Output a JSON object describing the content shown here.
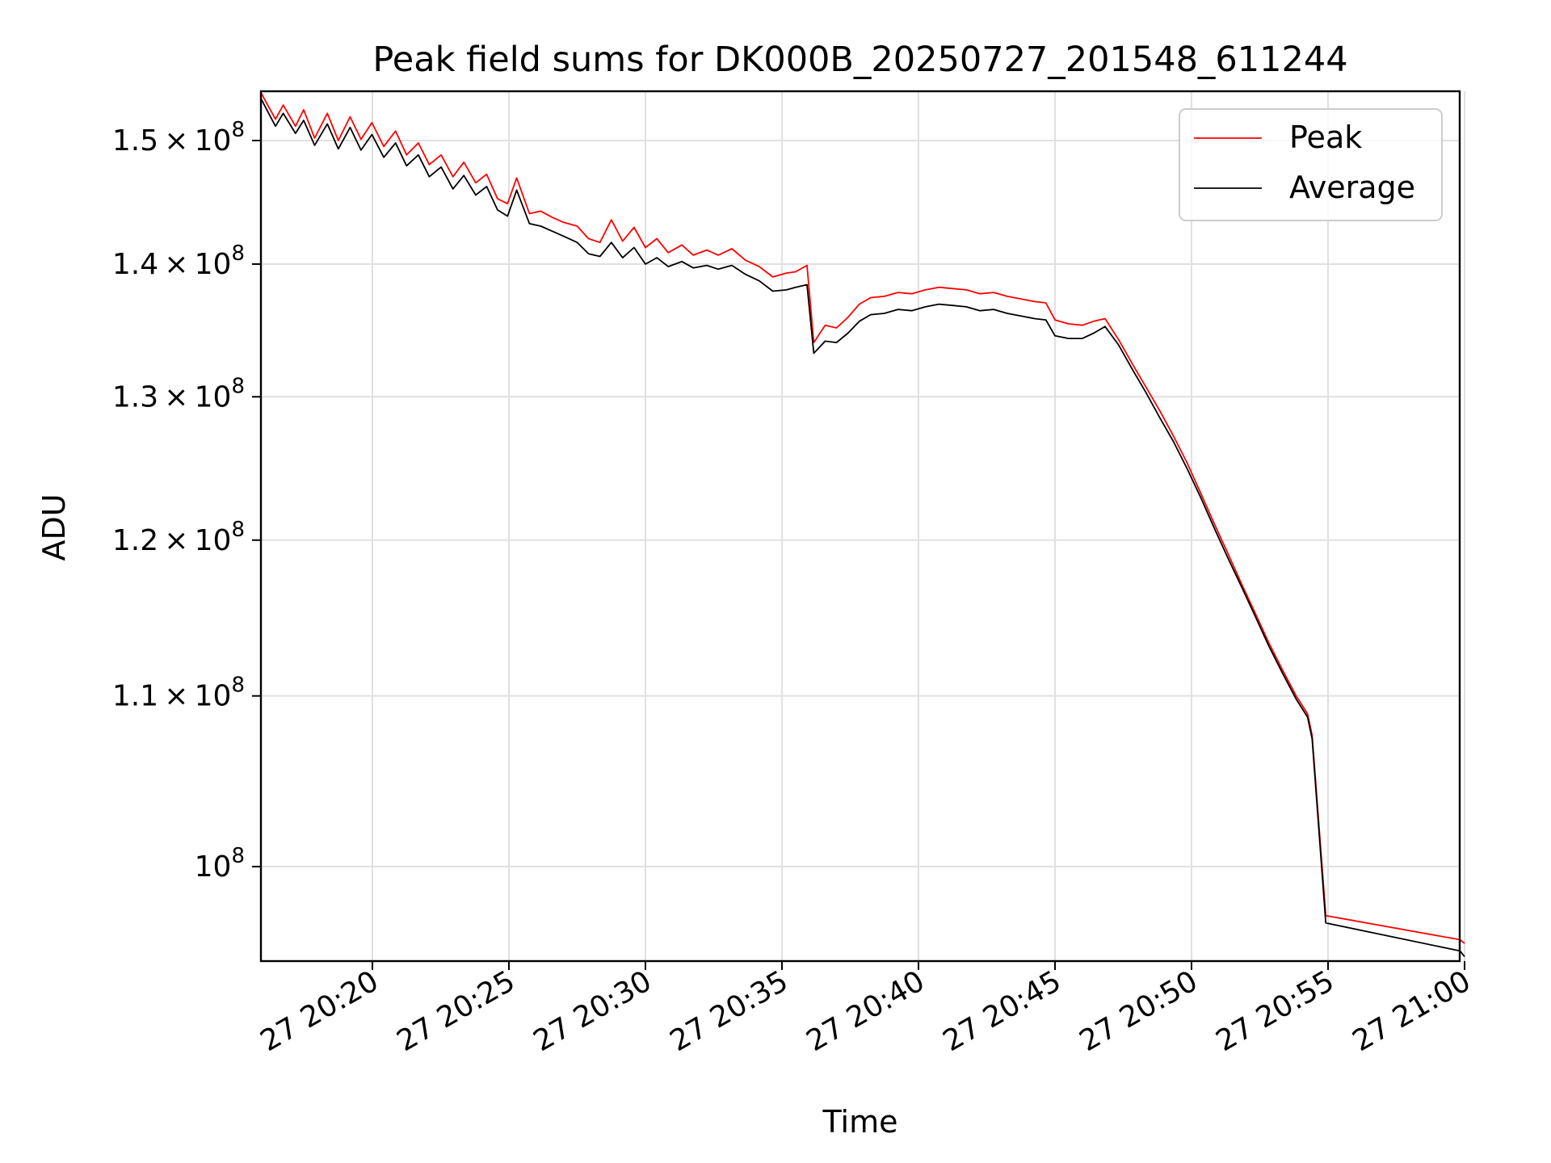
{
  "chart_data": {
    "type": "line",
    "title": "Peak field sums for DK000B_20250727_201548_611244",
    "xlabel": "Time",
    "ylabel": "ADU",
    "yscale": "log",
    "grid": true,
    "legend_position": "top-right",
    "x_ticks": [
      "27 20:20",
      "27 20:25",
      "27 20:30",
      "27 20:35",
      "27 20:40",
      "27 20:45",
      "27 20:50",
      "27 20:55",
      "27 21:00"
    ],
    "y_ticks": [
      {
        "value": 150000000,
        "mantissa": "1.5",
        "exp": "8"
      },
      {
        "value": 140000000,
        "mantissa": "1.4",
        "exp": "8"
      },
      {
        "value": 130000000,
        "mantissa": "1.3",
        "exp": "8"
      },
      {
        "value": 120000000,
        "mantissa": "1.2",
        "exp": "8"
      },
      {
        "value": 110000000,
        "mantissa": "1.1",
        "exp": "8"
      },
      {
        "value": 100000000,
        "mantissa": "",
        "exp": "8"
      }
    ],
    "series": [
      {
        "name": "Peak",
        "color": "#ff0000",
        "points": [
          [
            "20:15:56",
            154000000
          ],
          [
            "20:16:27",
            151800000
          ],
          [
            "20:16:44",
            153000000
          ],
          [
            "20:17:11",
            151200000
          ],
          [
            "20:17:29",
            152600000
          ],
          [
            "20:17:53",
            150200000
          ],
          [
            "20:18:21",
            152300000
          ],
          [
            "20:18:45",
            150000000
          ],
          [
            "20:19:11",
            152000000
          ],
          [
            "20:19:35",
            150100000
          ],
          [
            "20:19:59",
            151500000
          ],
          [
            "20:20:25",
            149500000
          ],
          [
            "20:20:51",
            150800000
          ],
          [
            "20:21:15",
            148800000
          ],
          [
            "20:21:41",
            149800000
          ],
          [
            "20:22:05",
            148000000
          ],
          [
            "20:22:31",
            148800000
          ],
          [
            "20:22:57",
            147000000
          ],
          [
            "20:23:21",
            148200000
          ],
          [
            "20:23:47",
            146500000
          ],
          [
            "20:24:11",
            147200000
          ],
          [
            "20:24:35",
            145200000
          ],
          [
            "20:24:57",
            144800000
          ],
          [
            "20:25:17",
            146900000
          ],
          [
            "20:25:45",
            144000000
          ],
          [
            "20:26:10",
            144200000
          ],
          [
            "20:26:35",
            143700000
          ],
          [
            "20:27:00",
            143300000
          ],
          [
            "20:27:30",
            143000000
          ],
          [
            "20:27:55",
            142000000
          ],
          [
            "20:28:20",
            141700000
          ],
          [
            "20:28:45",
            143500000
          ],
          [
            "20:29:10",
            141800000
          ],
          [
            "20:29:35",
            142900000
          ],
          [
            "20:30:00",
            141300000
          ],
          [
            "20:30:25",
            142000000
          ],
          [
            "20:30:50",
            140900000
          ],
          [
            "20:31:20",
            141500000
          ],
          [
            "20:31:45",
            140700000
          ],
          [
            "20:32:15",
            141100000
          ],
          [
            "20:32:40",
            140700000
          ],
          [
            "20:33:10",
            141200000
          ],
          [
            "20:33:40",
            140300000
          ],
          [
            "20:34:10",
            139800000
          ],
          [
            "20:34:40",
            139000000
          ],
          [
            "20:35:10",
            139300000
          ],
          [
            "20:35:30",
            139400000
          ],
          [
            "20:35:55",
            139900000
          ],
          [
            "20:36:10",
            134000000
          ],
          [
            "20:36:35",
            135300000
          ],
          [
            "20:37:00",
            135100000
          ],
          [
            "20:37:25",
            135900000
          ],
          [
            "20:37:50",
            136900000
          ],
          [
            "20:38:15",
            137400000
          ],
          [
            "20:38:45",
            137500000
          ],
          [
            "20:39:15",
            137800000
          ],
          [
            "20:39:45",
            137700000
          ],
          [
            "20:40:15",
            138000000
          ],
          [
            "20:40:45",
            138200000
          ],
          [
            "20:41:15",
            138100000
          ],
          [
            "20:41:45",
            138000000
          ],
          [
            "20:42:15",
            137700000
          ],
          [
            "20:42:45",
            137800000
          ],
          [
            "20:43:15",
            137500000
          ],
          [
            "20:43:45",
            137300000
          ],
          [
            "20:44:15",
            137100000
          ],
          [
            "20:44:40",
            137000000
          ],
          [
            "20:45:00",
            135700000
          ],
          [
            "20:45:30",
            135400000
          ],
          [
            "20:46:00",
            135300000
          ],
          [
            "20:46:25",
            135600000
          ],
          [
            "20:46:50",
            135800000
          ],
          [
            "20:47:20",
            134200000
          ],
          [
            "20:47:50",
            132400000
          ],
          [
            "20:48:20",
            130700000
          ],
          [
            "20:48:50",
            129000000
          ],
          [
            "20:49:20",
            127200000
          ],
          [
            "20:49:50",
            125300000
          ],
          [
            "20:50:20",
            123200000
          ],
          [
            "20:50:50",
            121100000
          ],
          [
            "20:51:20",
            119100000
          ],
          [
            "20:51:50",
            117100000
          ],
          [
            "20:52:20",
            115200000
          ],
          [
            "20:52:50",
            113300000
          ],
          [
            "20:53:20",
            111600000
          ],
          [
            "20:53:50",
            110000000
          ],
          [
            "20:54:15",
            108900000
          ],
          [
            "20:54:25",
            107600000
          ],
          [
            "20:54:55",
            97300000
          ],
          [
            "20:59:50",
            96000000
          ],
          [
            "21:00:00",
            95800000
          ]
        ]
      },
      {
        "name": "Average",
        "color": "#000000",
        "points": [
          [
            "20:15:56",
            153500000
          ],
          [
            "20:16:27",
            151200000
          ],
          [
            "20:16:44",
            152300000
          ],
          [
            "20:17:11",
            150600000
          ],
          [
            "20:17:29",
            151700000
          ],
          [
            "20:17:53",
            149600000
          ],
          [
            "20:18:21",
            151400000
          ],
          [
            "20:18:45",
            149300000
          ],
          [
            "20:19:11",
            151100000
          ],
          [
            "20:19:35",
            149200000
          ],
          [
            "20:19:59",
            150500000
          ],
          [
            "20:20:25",
            148600000
          ],
          [
            "20:20:51",
            149800000
          ],
          [
            "20:21:15",
            147900000
          ],
          [
            "20:21:41",
            148800000
          ],
          [
            "20:22:05",
            147000000
          ],
          [
            "20:22:31",
            147800000
          ],
          [
            "20:22:57",
            146000000
          ],
          [
            "20:23:21",
            147100000
          ],
          [
            "20:23:47",
            145500000
          ],
          [
            "20:24:11",
            146200000
          ],
          [
            "20:24:35",
            144300000
          ],
          [
            "20:24:57",
            143800000
          ],
          [
            "20:25:17",
            145900000
          ],
          [
            "20:25:45",
            143200000
          ],
          [
            "20:26:10",
            143000000
          ],
          [
            "20:26:35",
            142600000
          ],
          [
            "20:27:00",
            142200000
          ],
          [
            "20:27:30",
            141700000
          ],
          [
            "20:27:55",
            140800000
          ],
          [
            "20:28:20",
            140600000
          ],
          [
            "20:28:45",
            141700000
          ],
          [
            "20:29:10",
            140500000
          ],
          [
            "20:29:35",
            141300000
          ],
          [
            "20:30:00",
            140000000
          ],
          [
            "20:30:25",
            140500000
          ],
          [
            "20:30:50",
            139800000
          ],
          [
            "20:31:20",
            140200000
          ],
          [
            "20:31:45",
            139700000
          ],
          [
            "20:32:15",
            139900000
          ],
          [
            "20:32:40",
            139600000
          ],
          [
            "20:33:10",
            139900000
          ],
          [
            "20:33:40",
            139200000
          ],
          [
            "20:34:10",
            138700000
          ],
          [
            "20:34:40",
            137900000
          ],
          [
            "20:35:10",
            138000000
          ],
          [
            "20:35:30",
            138200000
          ],
          [
            "20:35:55",
            138400000
          ],
          [
            "20:36:10",
            133200000
          ],
          [
            "20:36:35",
            134100000
          ],
          [
            "20:37:00",
            134000000
          ],
          [
            "20:37:25",
            134700000
          ],
          [
            "20:37:50",
            135600000
          ],
          [
            "20:38:15",
            136100000
          ],
          [
            "20:38:45",
            136200000
          ],
          [
            "20:39:15",
            136500000
          ],
          [
            "20:39:45",
            136400000
          ],
          [
            "20:40:15",
            136700000
          ],
          [
            "20:40:45",
            136900000
          ],
          [
            "20:41:15",
            136800000
          ],
          [
            "20:41:45",
            136700000
          ],
          [
            "20:42:15",
            136400000
          ],
          [
            "20:42:45",
            136500000
          ],
          [
            "20:43:15",
            136200000
          ],
          [
            "20:43:45",
            136000000
          ],
          [
            "20:44:15",
            135800000
          ],
          [
            "20:44:40",
            135700000
          ],
          [
            "20:45:00",
            134500000
          ],
          [
            "20:45:30",
            134300000
          ],
          [
            "20:46:00",
            134300000
          ],
          [
            "20:46:25",
            134700000
          ],
          [
            "20:46:50",
            135200000
          ],
          [
            "20:47:20",
            133800000
          ],
          [
            "20:47:50",
            132000000
          ],
          [
            "20:48:20",
            130300000
          ],
          [
            "20:48:50",
            128500000
          ],
          [
            "20:49:20",
            126800000
          ],
          [
            "20:49:50",
            124900000
          ],
          [
            "20:50:20",
            122900000
          ],
          [
            "20:50:50",
            120800000
          ],
          [
            "20:51:20",
            118800000
          ],
          [
            "20:51:50",
            116900000
          ],
          [
            "20:52:20",
            115000000
          ],
          [
            "20:52:50",
            113100000
          ],
          [
            "20:53:20",
            111400000
          ],
          [
            "20:53:50",
            109800000
          ],
          [
            "20:54:15",
            108700000
          ],
          [
            "20:54:25",
            107400000
          ],
          [
            "20:54:55",
            96900000
          ],
          [
            "20:59:50",
            95400000
          ],
          [
            "21:00:00",
            95100000
          ]
        ]
      }
    ]
  }
}
